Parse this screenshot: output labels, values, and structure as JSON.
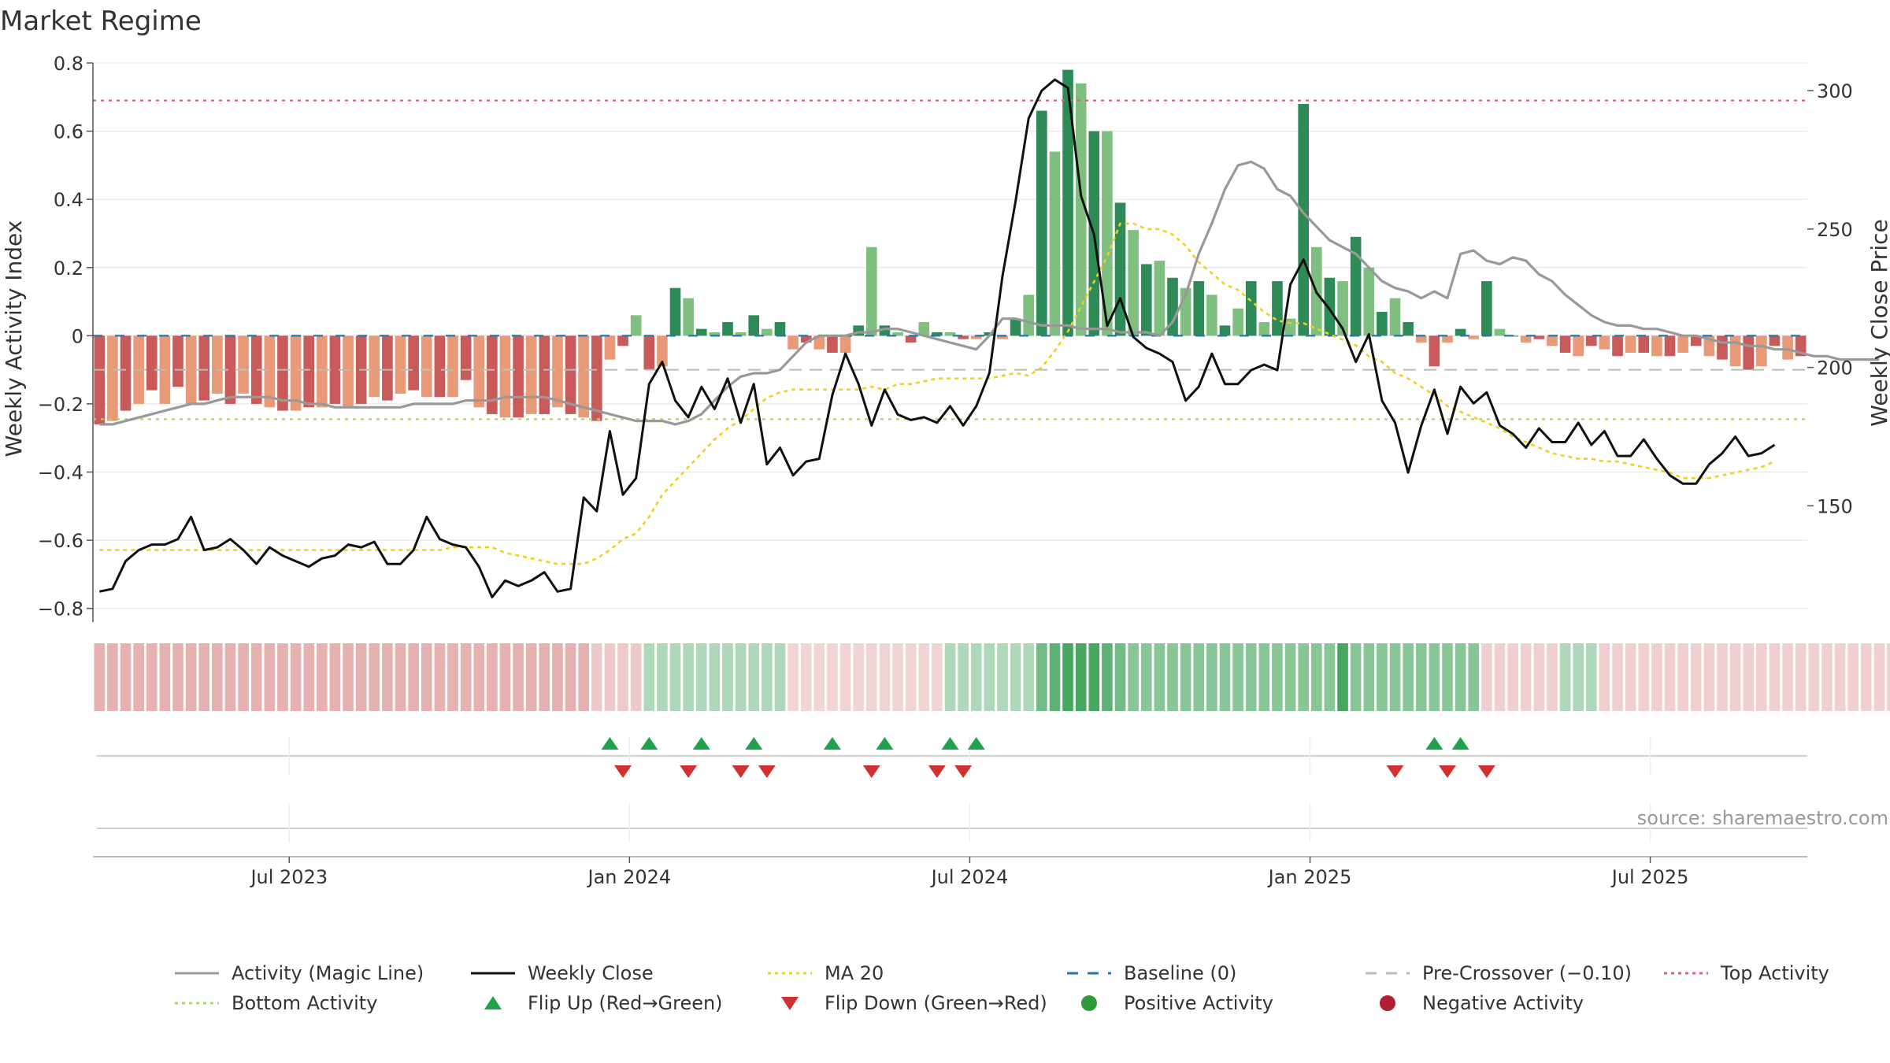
{
  "chart_data": {
    "type": "bar",
    "title": "Market Regime",
    "ylabel_left": "Weekly Activity Index",
    "ylabel_right": "Weekly Close Price",
    "source": "source: sharemaestro.com",
    "ylim_left": [
      -0.84,
      0.8
    ],
    "ylim_right": [
      108,
      310
    ],
    "yticks_left": [
      "0.8",
      "0.6",
      "0.4",
      "0.2",
      "0",
      "−0.2",
      "−0.4",
      "−0.6",
      "−0.8"
    ],
    "yticks_left_values": [
      0.8,
      0.6,
      0.4,
      0.2,
      0,
      -0.2,
      -0.4,
      -0.6,
      -0.8
    ],
    "yticks_right": [
      "300",
      "250",
      "200",
      "150"
    ],
    "yticks_right_values": [
      300,
      250,
      200,
      150
    ],
    "x_tick_labels": [
      "Jul 2023",
      "Jan 2024",
      "Jul 2024",
      "Jan 2025",
      "Jul 2025"
    ],
    "x_tick_weeks": [
      15,
      41,
      67,
      93,
      119
    ],
    "weeks": 131,
    "top_activity": 0.69,
    "bottom_activity": -0.245,
    "pre_crossover": -0.1,
    "baseline": 0,
    "activity": [
      -0.26,
      -0.25,
      -0.22,
      -0.2,
      -0.16,
      -0.2,
      -0.15,
      -0.2,
      -0.19,
      -0.17,
      -0.2,
      -0.17,
      -0.2,
      -0.21,
      -0.22,
      -0.22,
      -0.21,
      -0.21,
      -0.2,
      -0.21,
      -0.2,
      -0.18,
      -0.19,
      -0.17,
      -0.16,
      -0.18,
      -0.18,
      -0.18,
      -0.13,
      -0.21,
      -0.23,
      -0.24,
      -0.24,
      -0.23,
      -0.23,
      -0.21,
      -0.23,
      -0.24,
      -0.25,
      -0.07,
      -0.03,
      0.06,
      -0.1,
      -0.09,
      0.14,
      0.11,
      0.02,
      0.01,
      0.04,
      0.01,
      0.06,
      0.02,
      0.04,
      -0.04,
      -0.02,
      -0.04,
      -0.05,
      -0.05,
      0.03,
      0.26,
      0.03,
      0.01,
      -0.02,
      0.04,
      0.01,
      0.01,
      -0.01,
      -0.01,
      0.01,
      -0.01,
      0.05,
      0.12,
      0.66,
      0.54,
      0.78,
      0.74,
      0.6,
      0.6,
      0.39,
      0.31,
      0.21,
      0.22,
      0.17,
      0.14,
      0.16,
      0.12,
      0.03,
      0.08,
      0.16,
      0.04,
      0.16,
      0.05,
      0.68,
      0.26,
      0.17,
      0.16,
      0.29,
      0.2,
      0.07,
      0.11,
      0.04,
      -0.02,
      -0.09,
      -0.02,
      0.02,
      -0.01,
      0.16,
      0.02,
      0,
      -0.02,
      -0.01,
      -0.03,
      -0.05,
      -0.06,
      -0.03,
      -0.04,
      -0.06,
      -0.05,
      -0.05,
      -0.06,
      -0.06,
      -0.05,
      -0.03,
      -0.06,
      -0.07,
      -0.09,
      -0.1,
      -0.09,
      -0.03,
      -0.07,
      -0.06
    ],
    "magic_line": [
      -0.26,
      -0.26,
      -0.25,
      -0.24,
      -0.23,
      -0.22,
      -0.21,
      -0.2,
      -0.2,
      -0.19,
      -0.18,
      -0.18,
      -0.18,
      -0.18,
      -0.19,
      -0.19,
      -0.2,
      -0.2,
      -0.21,
      -0.21,
      -0.21,
      -0.21,
      -0.21,
      -0.21,
      -0.2,
      -0.2,
      -0.2,
      -0.2,
      -0.19,
      -0.19,
      -0.19,
      -0.18,
      -0.18,
      -0.18,
      -0.18,
      -0.19,
      -0.2,
      -0.21,
      -0.22,
      -0.23,
      -0.24,
      -0.25,
      -0.25,
      -0.25,
      -0.26,
      -0.25,
      -0.23,
      -0.19,
      -0.15,
      -0.12,
      -0.11,
      -0.11,
      -0.1,
      -0.06,
      -0.02,
      0,
      0,
      0,
      0.01,
      0.01,
      0.02,
      0.02,
      0.01,
      0,
      -0.01,
      -0.02,
      -0.03,
      -0.04,
      0,
      0.05,
      0.05,
      0.04,
      0.03,
      0.03,
      0.03,
      0.02,
      0.02,
      0.02,
      0.01,
      0.01,
      0.01,
      0,
      0.04,
      0.12,
      0.24,
      0.33,
      0.43,
      0.5,
      0.51,
      0.49,
      0.43,
      0.41,
      0.36,
      0.32,
      0.28,
      0.26,
      0.24,
      0.2,
      0.16,
      0.14,
      0.13,
      0.11,
      0.13,
      0.11,
      0.24,
      0.25,
      0.22,
      0.21,
      0.23,
      0.22,
      0.18,
      0.16,
      0.12,
      0.09,
      0.06,
      0.04,
      0.03,
      0.03,
      0.02,
      0.02,
      0.01,
      0,
      0,
      -0.01,
      -0.02,
      -0.02,
      -0.03,
      -0.03,
      -0.04,
      -0.04,
      -0.05,
      -0.06,
      -0.06,
      -0.07,
      -0.07,
      -0.07,
      -0.07
    ],
    "weekly_close": [
      119,
      120,
      130,
      134,
      136,
      136,
      138,
      146,
      134,
      135,
      138,
      134,
      129,
      135,
      132,
      130,
      128,
      131,
      132,
      136,
      135,
      137,
      129,
      129,
      134,
      146,
      138,
      136,
      135,
      128,
      117,
      123,
      121,
      123,
      126,
      119,
      120,
      153,
      148,
      177,
      154,
      160,
      194,
      202,
      188,
      182,
      193,
      185,
      196,
      180,
      194,
      165,
      171,
      161,
      166,
      167,
      190,
      205,
      194,
      179,
      192,
      183,
      181,
      182,
      180,
      186,
      179,
      186,
      198,
      233,
      260,
      290,
      300,
      304,
      301,
      262,
      248,
      215,
      225,
      211,
      207,
      205,
      202,
      188,
      193,
      205,
      194,
      194,
      199,
      201,
      199,
      230,
      239,
      227,
      221,
      214,
      202,
      212,
      188,
      180,
      162,
      179,
      192,
      176,
      193,
      187,
      191,
      179,
      176,
      171,
      178,
      173,
      173,
      180,
      172,
      177,
      168,
      168,
      174,
      167,
      161,
      158,
      158,
      165,
      169,
      175,
      168,
      169,
      172
    ],
    "ma20": [
      134,
      134,
      134,
      134,
      134,
      134,
      134,
      134,
      134,
      134,
      134,
      134,
      134,
      134,
      134,
      134,
      134,
      134,
      134,
      134,
      134,
      134,
      134,
      134,
      134,
      134,
      134,
      135,
      135,
      135,
      135,
      133,
      132,
      131,
      130,
      129,
      129,
      129,
      131,
      134,
      138,
      140,
      146,
      154,
      159,
      164,
      169,
      174,
      178,
      181,
      185,
      189,
      191,
      192,
      192,
      192,
      192,
      192,
      192,
      193,
      192,
      194,
      194,
      195,
      196,
      196,
      196,
      196,
      196,
      197,
      198,
      197,
      200,
      206,
      213,
      222,
      231,
      240,
      252,
      252,
      250,
      250,
      248,
      244,
      238,
      234,
      230,
      228,
      224,
      220,
      217,
      216,
      216,
      214,
      212,
      210,
      208,
      204,
      202,
      198,
      196,
      193,
      190,
      186,
      184,
      182,
      180,
      178,
      175,
      173,
      171,
      169,
      168,
      167,
      167,
      166,
      166,
      165,
      164,
      163,
      162,
      160,
      160,
      160,
      161,
      162,
      163,
      164,
      166
    ],
    "flip_up_weeks": [
      39,
      42,
      46,
      50,
      56,
      60,
      65,
      67,
      102,
      104
    ],
    "flip_down_weeks": [
      40,
      45,
      49,
      51,
      59,
      64,
      66,
      99,
      103,
      106
    ],
    "strip_levels": [
      -1,
      -1,
      -1,
      -1,
      -1,
      -1,
      -1,
      -1,
      -1,
      -1,
      -1,
      -1,
      -1,
      -1,
      -1,
      -1,
      -1,
      -1,
      -1,
      -1,
      -1,
      -1,
      -1,
      -1,
      -1,
      -1,
      -1,
      -1,
      -1,
      -1,
      -1,
      -1,
      -1,
      -1,
      -1,
      -1,
      -1,
      -1,
      -0.6,
      -0.6,
      -0.6,
      -0.6,
      0.4,
      0.4,
      0.4,
      0.4,
      0.4,
      0.4,
      0.4,
      0.4,
      0.4,
      0.4,
      0.4,
      -0.4,
      -0.4,
      -0.4,
      -0.4,
      -0.4,
      -0.4,
      -0.4,
      -0.4,
      -0.4,
      -0.4,
      -0.4,
      -0.4,
      0.4,
      0.4,
      0.4,
      0.4,
      0.4,
      0.4,
      0.4,
      0.7,
      0.8,
      0.9,
      0.9,
      0.9,
      0.8,
      0.7,
      0.6,
      0.6,
      0.6,
      0.6,
      0.6,
      0.6,
      0.6,
      0.6,
      0.6,
      0.6,
      0.6,
      0.6,
      0.6,
      0.6,
      0.6,
      0.6,
      0.9,
      0.6,
      0.6,
      0.6,
      0.6,
      0.6,
      0.6,
      0.6,
      0.6,
      0.6,
      0.6,
      -0.5,
      -0.5,
      -0.5,
      -0.5,
      -0.5,
      -0.5,
      0.4,
      0.4,
      0.4,
      -0.5,
      -0.5,
      -0.5,
      -0.5,
      -0.5,
      -0.5,
      -0.5,
      -0.5,
      -0.5,
      -0.5,
      -0.5,
      -0.5,
      -0.5,
      -0.5,
      -0.5,
      -0.5,
      -0.5,
      -0.5,
      -0.5,
      -0.5,
      -0.5,
      -0.5,
      -0.5,
      -0.5,
      -0.5,
      -0.5,
      -0.5
    ],
    "colors": {
      "pos_dark": "#2e8b57",
      "pos_light": "#7fbf7f",
      "neg_dark": "#c85a5a",
      "neg_light": "#e89a78",
      "magic_line": "#999999",
      "weekly_close": "#111111",
      "ma20": "#f0d020",
      "baseline": "#1f77b4",
      "pre_crossover": "#bbbbbb",
      "top_activity": "#e06070",
      "bottom_activity": "#a8d86a",
      "flip_up": "#1fa34a",
      "flip_down": "#d03030"
    },
    "legend": [
      {
        "label": "Activity (Magic Line)",
        "style": "line",
        "color": "#999999"
      },
      {
        "label": "Weekly Close",
        "style": "line",
        "color": "#111111"
      },
      {
        "label": "MA 20",
        "style": "dotted",
        "color": "#f0d020"
      },
      {
        "label": "Baseline (0)",
        "style": "dashed",
        "color": "#1f77b4"
      },
      {
        "label": "Pre-Crossover (−0.10)",
        "style": "dashed",
        "color": "#bbbbbb"
      },
      {
        "label": "Top Activity",
        "style": "dotted",
        "color": "#e06070"
      },
      {
        "label": "Bottom Activity",
        "style": "dotted",
        "color": "#a8d86a"
      },
      {
        "label": "Flip Up (Red→Green)",
        "style": "tri-up",
        "color": "#1fa34a"
      },
      {
        "label": "Flip Down (Green→Red)",
        "style": "tri-down",
        "color": "#d03030"
      },
      {
        "label": "Positive Activity",
        "style": "dot",
        "color": "#2e9a3a"
      },
      {
        "label": "Negative Activity",
        "style": "dot",
        "color": "#b02030"
      }
    ]
  }
}
